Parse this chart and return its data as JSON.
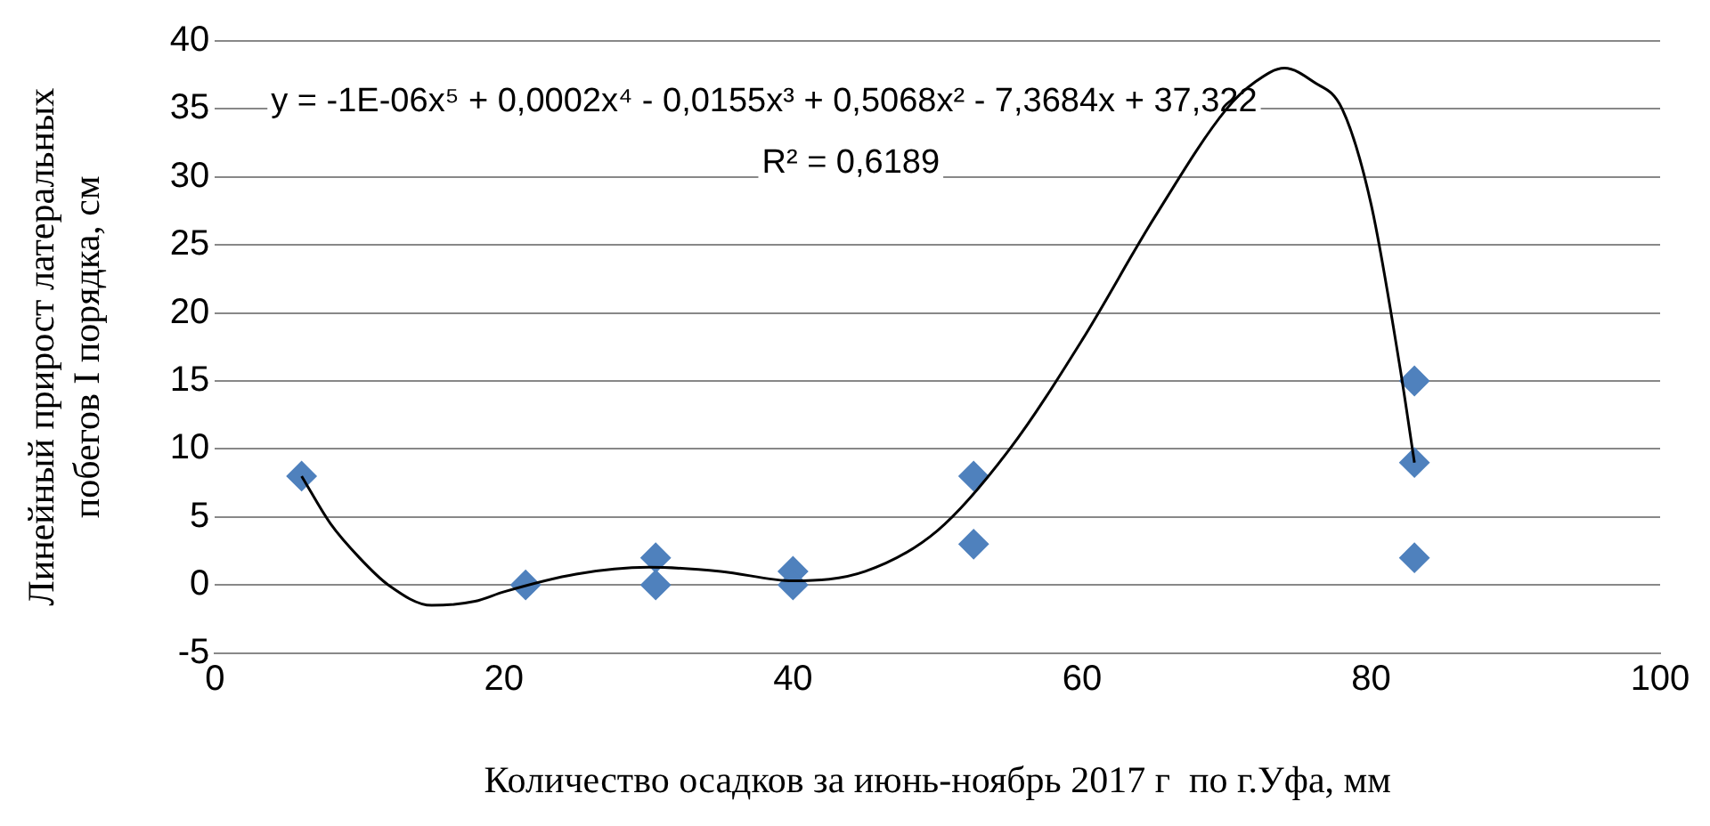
{
  "chart_data": {
    "type": "scatter",
    "xlabel": "Количество осадков за июнь-ноябрь 2017 г  по г.Уфа, мм",
    "ylabel": "Линейный прирост латеральных побегов I порядка, см",
    "annotations": [
      "y = -1E-06x⁵ + 0,0002x⁴ - 0,0155x³ + 0,5068x² - 7,3684x + 37,322",
      "R² = 0,6189"
    ],
    "series": [
      {
        "type": "scatter",
        "color": "#4f81bd",
        "marker": "diamond",
        "x": [
          6,
          21.5,
          30.5,
          30.5,
          40,
          40,
          52.5,
          52.5,
          83,
          83,
          83
        ],
        "values": [
          8,
          0,
          2,
          0,
          1,
          0,
          8,
          3,
          15,
          9,
          2
        ]
      },
      {
        "type": "line",
        "color": "#000000",
        "marker": "none",
        "line_style": "solid",
        "x": [
          6,
          8,
          10,
          12,
          15,
          18,
          20,
          25,
          30,
          35,
          40,
          45,
          50,
          55,
          60,
          65,
          70,
          72,
          74,
          76,
          78,
          80,
          82,
          83
        ],
        "values": [
          8,
          4.5,
          2,
          0,
          -1.5,
          -1.2,
          -0.5,
          0.8,
          1.3,
          1,
          0.3,
          1,
          4,
          10,
          18,
          27,
          35,
          37,
          38,
          37,
          35,
          28,
          16,
          9
        ]
      }
    ],
    "xlim": [
      0,
      100
    ],
    "xticks": [
      0,
      20,
      40,
      60,
      80,
      100
    ],
    "ylim": [
      -5,
      40
    ],
    "yticks": [
      -5,
      0,
      5,
      10,
      15,
      20,
      25,
      30,
      35,
      40
    ],
    "grid": "y",
    "legend": false
  }
}
